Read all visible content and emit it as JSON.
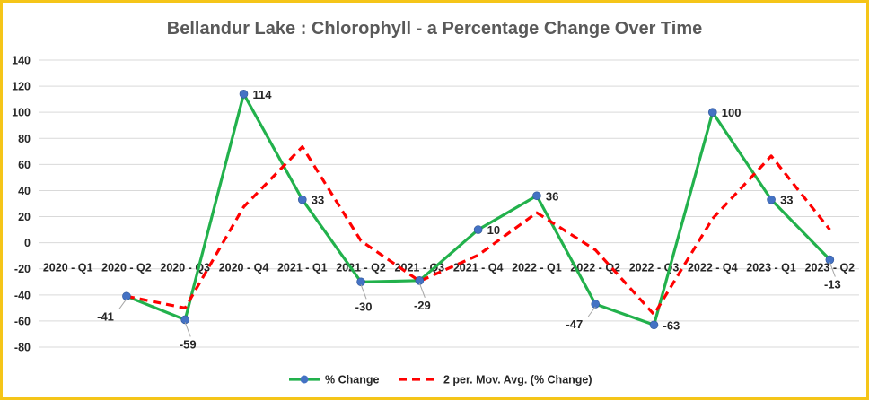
{
  "chart_data": {
    "type": "line",
    "title": "Bellandur Lake : Chlorophyll - a Percentage Change Over Time",
    "categories": [
      "2020 - Q1",
      "2020 - Q2",
      "2020 - Q3",
      "2020 - Q4",
      "2021 - Q1",
      "2021 - Q2",
      "2021 - Q3",
      "2021 - Q4",
      "2022 - Q1",
      "2022 - Q2",
      "2022 - Q3",
      "2022 - Q4",
      "2023 - Q1",
      "2023 - Q2"
    ],
    "ylim": [
      -80,
      140
    ],
    "yticks": [
      140,
      120,
      100,
      80,
      60,
      40,
      20,
      0,
      -20,
      -40,
      -60,
      -80
    ],
    "grid": true,
    "legend_position": "bottom",
    "series": [
      {
        "name": "% Change",
        "color": "#22b14c",
        "style": "solid",
        "markers": true,
        "marker_color": "#4472c4",
        "values": [
          null,
          -41,
          -59,
          114,
          33,
          -30,
          -29,
          10,
          36,
          -47,
          -63,
          100,
          33,
          -13
        ],
        "labels": [
          null,
          "-41",
          "-59",
          "114",
          "33",
          "-30",
          "-29",
          "10",
          "36",
          "-47",
          "-63",
          "100",
          "33",
          "-13"
        ]
      },
      {
        "name": "2 per. Mov. Avg. (% Change)",
        "color": "#ff0000",
        "style": "dashed",
        "markers": false,
        "values": [
          null,
          -41,
          -50,
          27.5,
          73.5,
          1.5,
          -29.5,
          -9.5,
          23,
          -5.5,
          -55,
          18.5,
          66.5,
          10
        ]
      }
    ]
  }
}
